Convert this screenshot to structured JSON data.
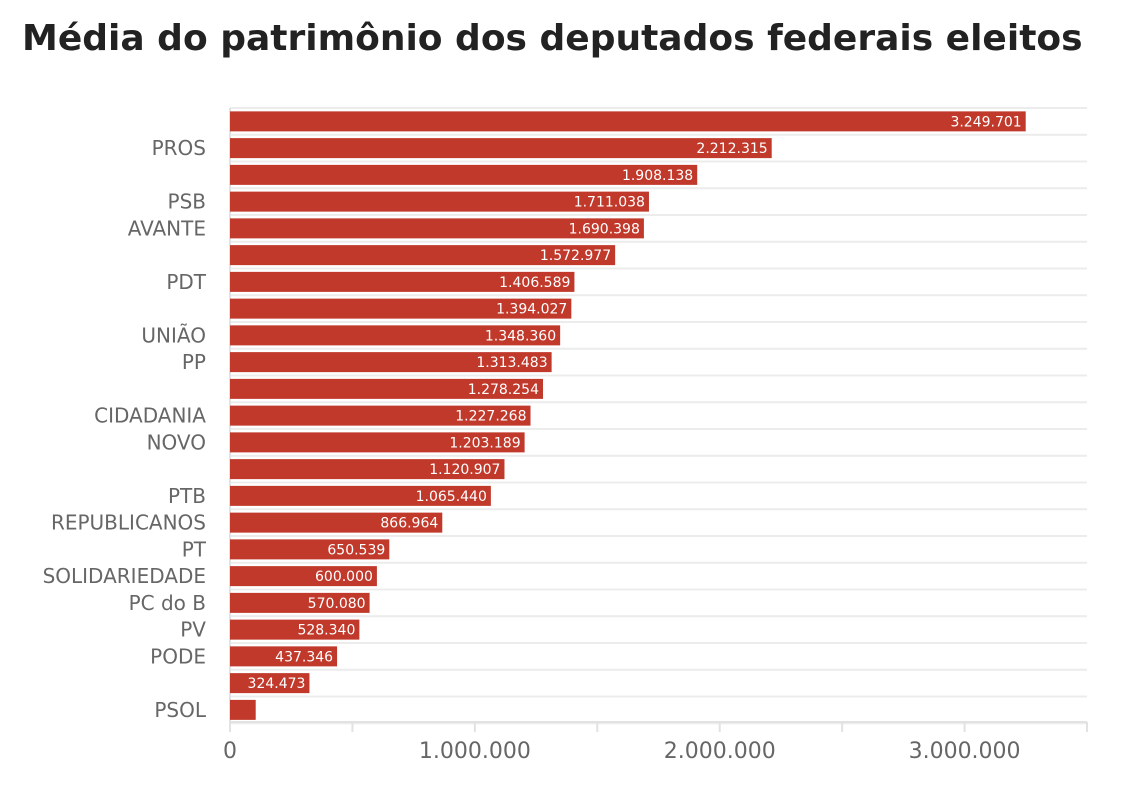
{
  "chart_data": {
    "type": "bar",
    "orientation": "horizontal",
    "title": "Média do patrimônio dos deputados federais eleitos",
    "categories": [
      "",
      "PROS",
      "",
      "PSB",
      "AVANTE",
      "",
      "PDT",
      "",
      "UNIÃO",
      "PP",
      "",
      "CIDADANIA",
      "NOVO",
      "",
      "PTB",
      "REPUBLICANOS",
      "PT",
      "SOLIDARIEDADE",
      "PC do B",
      "PV",
      "PODE",
      "",
      "PSOL"
    ],
    "values": [
      3249701,
      2212315,
      1908138,
      1711038,
      1690398,
      1572977,
      1406589,
      1394027,
      1348360,
      1313483,
      1278254,
      1227268,
      1203189,
      1120907,
      1065440,
      866964,
      650539,
      600000,
      570080,
      528340,
      437346,
      324473,
      105000
    ],
    "value_labels": [
      "3.249.701",
      "2.212.315",
      "1.908.138",
      "1.711.038",
      "1.690.398",
      "1.572.977",
      "1.406.589",
      "1.394.027",
      "1.348.360",
      "1.313.483",
      "1.278.254",
      "1.227.268",
      "1.203.189",
      "1.120.907",
      "1.065.440",
      "866.964",
      "650.539",
      "600.000",
      "570.080",
      "528.340",
      "437.346",
      "324.473",
      ""
    ],
    "xlim": [
      0,
      3500000
    ],
    "xticks": [
      0,
      1000000,
      2000000,
      3000000
    ],
    "xtick_labels": [
      "0",
      "1.000.000",
      "2.000.000",
      "3.000.000"
    ],
    "minor_xticks": [
      500000,
      1500000,
      2500000,
      3500000
    ],
    "xlabel": "",
    "ylabel": "",
    "grid": true,
    "bar_color": "#c0392b"
  }
}
